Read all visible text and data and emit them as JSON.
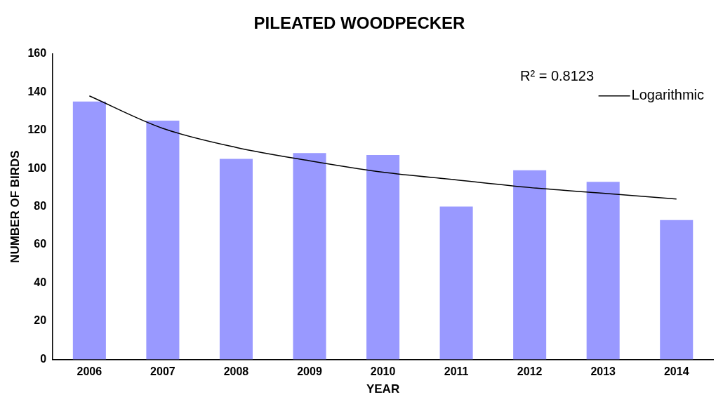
{
  "chart_data": {
    "type": "bar",
    "title": "PILEATED WOODPECKER",
    "xlabel": "YEAR",
    "ylabel": "NUMBER OF BIRDS",
    "categories": [
      "2006",
      "2007",
      "2008",
      "2009",
      "2010",
      "2011",
      "2012",
      "2013",
      "2014"
    ],
    "series": [
      {
        "color": "#9999ff",
        "values": [
          135,
          125,
          105,
          108,
          107,
          80,
          99,
          93,
          73
        ]
      },
      {
        "type": "line",
        "name": "Logarithmic",
        "color": "#000000",
        "values": [
          138,
          121,
          111,
          104,
          98,
          94,
          90,
          87,
          84
        ]
      }
    ],
    "ylim": [
      0,
      160
    ],
    "yticks": [
      0,
      20,
      40,
      60,
      80,
      100,
      120,
      140,
      160
    ],
    "grid": false,
    "legend": "top right",
    "marker": "none",
    "annotations": [
      "R² = 0.8123"
    ]
  }
}
